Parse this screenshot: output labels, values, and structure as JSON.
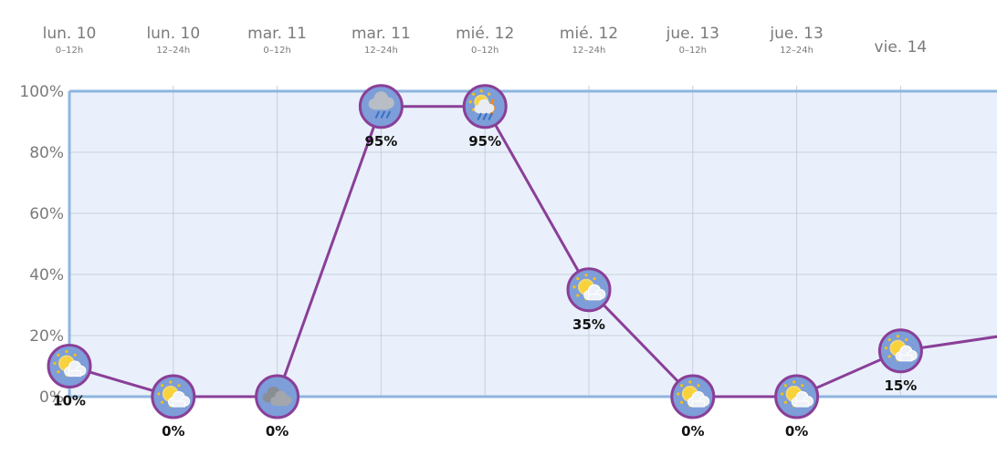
{
  "chart_data": {
    "type": "line",
    "x": [
      {
        "day": "lun. 10",
        "period": "0–12h"
      },
      {
        "day": "lun. 10",
        "period": "12–24h"
      },
      {
        "day": "mar. 11",
        "period": "0–12h"
      },
      {
        "day": "mar. 11",
        "period": "12–24h"
      },
      {
        "day": "mié. 12",
        "period": "0–12h"
      },
      {
        "day": "mié. 12",
        "period": "12–24h"
      },
      {
        "day": "jue. 13",
        "period": "0–12h"
      },
      {
        "day": "jue. 13",
        "period": "12–24h"
      },
      {
        "day": "vie. 14",
        "period": ""
      }
    ],
    "values": [
      10,
      0,
      0,
      95,
      95,
      35,
      0,
      0,
      15
    ],
    "value_labels": [
      "10%",
      "0%",
      "0%",
      "95%",
      "95%",
      "35%",
      "0%",
      "0%",
      "15%"
    ],
    "icons": [
      "sun-cloud-icon",
      "sun-cloud-icon",
      "cloud-icon",
      "rain-cloud-icon",
      "sun-rain-icon",
      "sun-cloud-icon",
      "sun-cloud-icon",
      "sun-cloud-icon",
      "sun-cloud-icon"
    ],
    "trailing_value": 20,
    "y_ticks": [
      "0%",
      "20%",
      "40%",
      "60%",
      "80%",
      "100%"
    ],
    "ylim": [
      0,
      100
    ],
    "grid": true,
    "colors": {
      "line": "#8a3f98",
      "plot_bg": "#e9f0fb",
      "frame": "#8fb5df",
      "grid": "#c7cfdc",
      "marker_fill": "#7d9ed8"
    }
  }
}
